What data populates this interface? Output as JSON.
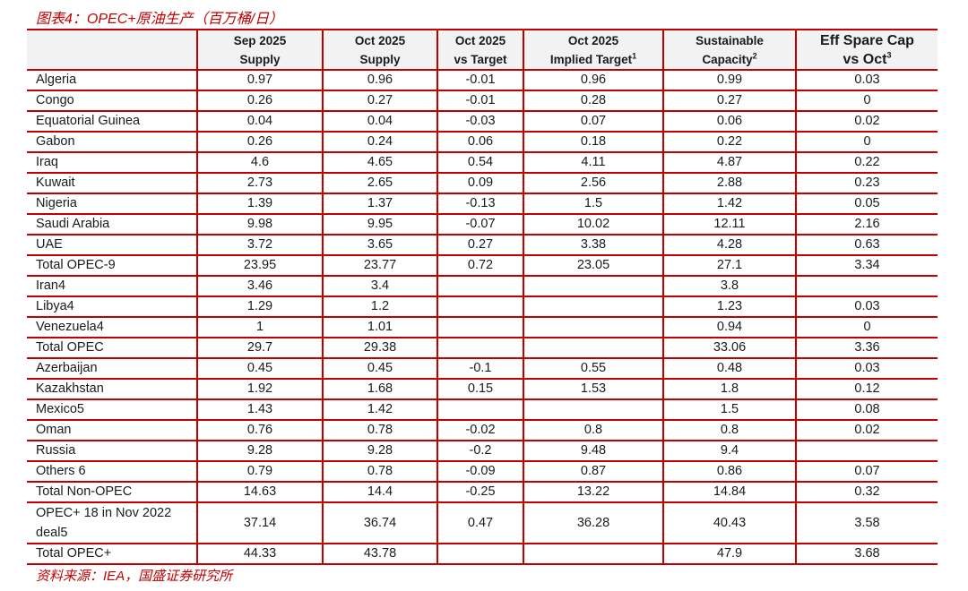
{
  "title": "图表4：OPEC+原油生产（百万桶/日）",
  "source": "资料来源：IEA，国盛证券研究所",
  "accent_color": "#c00000",
  "header": [
    {
      "line1": "",
      "line2": "",
      "sup": ""
    },
    {
      "line1": "Sep 2025",
      "line2": "Supply",
      "sup": ""
    },
    {
      "line1": "Oct 2025",
      "line2": "Supply",
      "sup": ""
    },
    {
      "line1": "Oct 2025",
      "line2": "vs Target",
      "sup": ""
    },
    {
      "line1": "Oct 2025",
      "line2": "Implied Target",
      "sup": "1"
    },
    {
      "line1": "Sustainable",
      "line2": "Capacity",
      "sup": "2"
    },
    {
      "line1": "Eff Spare Cap",
      "line2": "vs Oct",
      "sup": "3"
    }
  ],
  "rows": [
    [
      "Algeria",
      "0.97",
      "0.96",
      "-0.01",
      "0.96",
      "0.99",
      "0.03"
    ],
    [
      "Congo",
      "0.26",
      "0.27",
      "-0.01",
      "0.28",
      "0.27",
      "0"
    ],
    [
      "Equatorial Guinea",
      "0.04",
      "0.04",
      "-0.03",
      "0.07",
      "0.06",
      "0.02"
    ],
    [
      "Gabon",
      "0.26",
      "0.24",
      "0.06",
      "0.18",
      "0.22",
      "0"
    ],
    [
      "Iraq",
      "4.6",
      "4.65",
      "0.54",
      "4.11",
      "4.87",
      "0.22"
    ],
    [
      "Kuwait",
      "2.73",
      "2.65",
      "0.09",
      "2.56",
      "2.88",
      "0.23"
    ],
    [
      "Nigeria",
      "1.39",
      "1.37",
      "-0.13",
      "1.5",
      "1.42",
      "0.05"
    ],
    [
      "Saudi Arabia",
      "9.98",
      "9.95",
      "-0.07",
      "10.02",
      "12.11",
      "2.16"
    ],
    [
      "UAE",
      "3.72",
      "3.65",
      "0.27",
      "3.38",
      "4.28",
      "0.63"
    ],
    [
      "Total OPEC-9",
      "23.95",
      "23.77",
      "0.72",
      "23.05",
      "27.1",
      "3.34"
    ],
    [
      "Iran4",
      "3.46",
      "3.4",
      "",
      "",
      "3.8",
      ""
    ],
    [
      "Libya4",
      "1.29",
      "1.2",
      "",
      "",
      "1.23",
      "0.03"
    ],
    [
      "Venezuela4",
      "1",
      "1.01",
      "",
      "",
      "0.94",
      "0"
    ],
    [
      "Total OPEC",
      "29.7",
      "29.38",
      "",
      "",
      "33.06",
      "3.36"
    ],
    [
      "Azerbaijan",
      "0.45",
      "0.45",
      "-0.1",
      "0.55",
      "0.48",
      "0.03"
    ],
    [
      "Kazakhstan",
      "1.92",
      "1.68",
      "0.15",
      "1.53",
      "1.8",
      "0.12"
    ],
    [
      "Mexico5",
      "1.43",
      "1.42",
      "",
      "",
      "1.5",
      "0.08"
    ],
    [
      "Oman",
      "0.76",
      "0.78",
      "-0.02",
      "0.8",
      "0.8",
      "0.02"
    ],
    [
      "Russia",
      "9.28",
      "9.28",
      "-0.2",
      "9.48",
      "9.4",
      ""
    ],
    [
      "Others 6",
      "0.79",
      "0.78",
      "-0.09",
      "0.87",
      "0.86",
      "0.07"
    ],
    [
      "Total Non-OPEC",
      "14.63",
      "14.4",
      "-0.25",
      "13.22",
      "14.84",
      "0.32"
    ],
    [
      "OPEC+ 18 in Nov 2022 deal5",
      "37.14",
      "36.74",
      "0.47",
      "36.28",
      "40.43",
      "3.58"
    ],
    [
      "Total OPEC+",
      "44.33",
      "43.78",
      "",
      "",
      "47.9",
      "3.68"
    ]
  ]
}
